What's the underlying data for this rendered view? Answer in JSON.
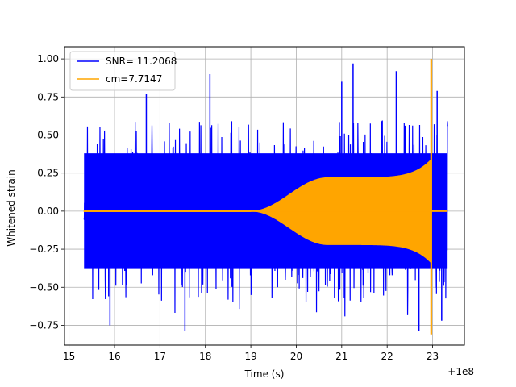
{
  "chart_data": {
    "type": "line",
    "xlabel": "Time (s)",
    "ylabel": "Whitened strain",
    "offset_label": "+1e8",
    "xlim": [
      14.9,
      23.7
    ],
    "ylim": [
      -0.88,
      1.08
    ],
    "xticks": [
      15,
      16,
      17,
      18,
      19,
      20,
      21,
      22,
      23
    ],
    "yticks": [
      -0.75,
      -0.5,
      -0.25,
      0.0,
      0.25,
      0.5,
      0.75,
      1.0
    ],
    "xtick_labels": [
      "15",
      "16",
      "17",
      "18",
      "19",
      "20",
      "21",
      "22",
      "23"
    ],
    "ytick_labels": [
      "−0.75",
      "−0.50",
      "−0.25",
      "0.00",
      "0.25",
      "0.50",
      "0.75",
      "1.00"
    ],
    "grid": true,
    "legend_position": "top-left",
    "series": [
      {
        "name": "SNR= 11.2068",
        "color": "#0000ff",
        "style": "noise",
        "x_range": [
          15.33,
          23.33
        ],
        "envelope_upper": 0.38,
        "envelope_lower": -0.38,
        "max": 0.97,
        "min": -0.79
      },
      {
        "name": "cm=7.7147",
        "color": "#ffa500",
        "style": "chirp",
        "x_range": [
          15.33,
          23.33
        ],
        "onset": 19.0,
        "plateau_start": 20.7,
        "plateau_amplitude": 0.22,
        "peak_time": 22.97,
        "peak_value": 1.0,
        "trough_value": -0.81
      }
    ]
  }
}
